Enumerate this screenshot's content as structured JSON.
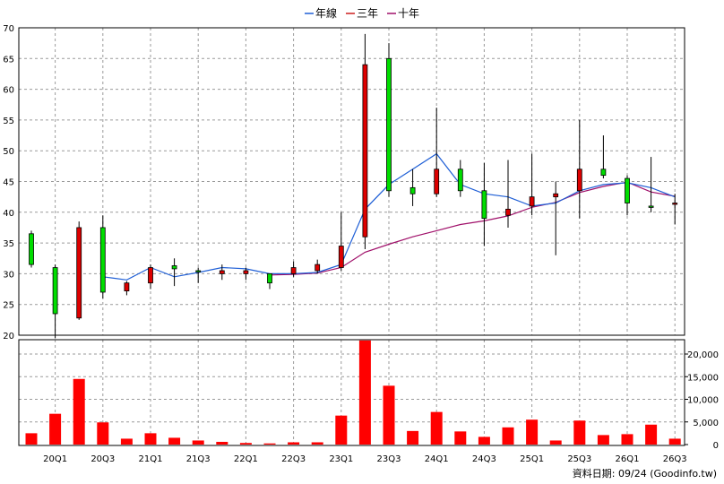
{
  "chart_data": {
    "type": "candlestick",
    "legend": [
      {
        "name": "年線",
        "color": "#1f5fd6"
      },
      {
        "name": "三年",
        "color": "#cc1e1e"
      },
      {
        "name": "十年",
        "color": "#a0106a"
      }
    ],
    "x_tick_labels": [
      "20Q1",
      "20Q3",
      "21Q1",
      "21Q3",
      "22Q1",
      "22Q3",
      "23Q1",
      "23Q3",
      "24Q1",
      "24Q3",
      "25Q1",
      "25Q3",
      "26Q1",
      "26Q3"
    ],
    "price_axis": {
      "min": 20,
      "max": 70,
      "ticks": [
        20,
        25,
        30,
        35,
        40,
        45,
        50,
        55,
        60,
        65,
        70
      ]
    },
    "volume_axis": {
      "min": 0,
      "max": 22000,
      "ticks": [
        0,
        5000,
        10000,
        15000,
        20000
      ],
      "tick_labels": [
        "0",
        "5,000",
        "10,000",
        "15,000",
        "20,000"
      ]
    },
    "colors": {
      "up": "#00dd00",
      "down": "#dd0000",
      "volume": "#ff0000",
      "year_line": "#1f5fd6",
      "ten_year_line": "#a0106a"
    },
    "candles": [
      {
        "open": 31.5,
        "high": 37.0,
        "low": 31.0,
        "close": 36.5
      },
      {
        "open": 23.5,
        "high": 31.5,
        "low": 19.5,
        "close": 31.0
      },
      {
        "open": 37.5,
        "high": 38.5,
        "low": 22.5,
        "close": 22.8
      },
      {
        "open": 27.0,
        "high": 39.5,
        "low": 26.0,
        "close": 37.5
      },
      {
        "open": 28.5,
        "high": 28.8,
        "low": 26.5,
        "close": 27.2
      },
      {
        "open": 31.0,
        "high": 31.5,
        "low": 27.5,
        "close": 28.5
      },
      {
        "open": 30.8,
        "high": 32.5,
        "low": 28.0,
        "close": 31.3
      },
      {
        "open": 30.3,
        "high": 31.0,
        "low": 28.5,
        "close": 30.5
      },
      {
        "open": 30.5,
        "high": 31.5,
        "low": 29.0,
        "close": 30.0
      },
      {
        "open": 30.5,
        "high": 31.0,
        "low": 29.0,
        "close": 30.0
      },
      {
        "open": 28.5,
        "high": 30.0,
        "low": 27.5,
        "close": 30.0
      },
      {
        "open": 31.0,
        "high": 32.0,
        "low": 29.5,
        "close": 30.0
      },
      {
        "open": 31.5,
        "high": 32.3,
        "low": 30.0,
        "close": 30.5
      },
      {
        "open": 34.5,
        "high": 40.0,
        "low": 30.5,
        "close": 31.0
      },
      {
        "open": 64.0,
        "high": 69.0,
        "low": 34.0,
        "close": 36.0
      },
      {
        "open": 43.5,
        "high": 67.5,
        "low": 42.5,
        "close": 65.0
      },
      {
        "open": 43.0,
        "high": 47.0,
        "low": 41.0,
        "close": 44.0
      },
      {
        "open": 47.0,
        "high": 57.0,
        "low": 42.5,
        "close": 43.0
      },
      {
        "open": 43.5,
        "high": 48.5,
        "low": 42.5,
        "close": 47.0
      },
      {
        "open": 39.0,
        "high": 48.0,
        "low": 34.5,
        "close": 43.5
      },
      {
        "open": 40.5,
        "high": 48.5,
        "low": 37.5,
        "close": 39.5
      },
      {
        "open": 42.5,
        "high": 49.5,
        "low": 39.5,
        "close": 41.0
      },
      {
        "open": 43.0,
        "high": 45.0,
        "low": 33.0,
        "close": 42.5
      },
      {
        "open": 47.0,
        "high": 55.0,
        "low": 39.0,
        "close": 43.5
      },
      {
        "open": 46.0,
        "high": 52.5,
        "low": 45.5,
        "close": 47.0
      },
      {
        "open": 41.5,
        "high": 46.0,
        "low": 39.5,
        "close": 45.5
      },
      {
        "open": 41.0,
        "high": 49.0,
        "low": 40.0,
        "close": 41.0
      },
      {
        "open": 41.5,
        "high": 43.0,
        "low": 38.0,
        "close": 41.3
      }
    ],
    "year_line": [
      null,
      null,
      null,
      29.5,
      29.0,
      31.0,
      29.5,
      30.2,
      31.0,
      30.8,
      30.0,
      30.0,
      30.2,
      31.5,
      40.5,
      44.5,
      47.0,
      49.5,
      44.5,
      43.0,
      42.5,
      41.0,
      41.5,
      43.5,
      44.5,
      44.8,
      44.0,
      42.5
    ],
    "ten_year_line": [
      null,
      null,
      null,
      null,
      null,
      null,
      null,
      null,
      null,
      null,
      29.8,
      29.9,
      30.1,
      31.0,
      33.5,
      34.8,
      36.0,
      37.0,
      38.0,
      38.6,
      39.4,
      40.8,
      41.6,
      43.2,
      44.2,
      44.9,
      43.3,
      42.6
    ],
    "volumes": [
      2500,
      6800,
      14500,
      4900,
      1300,
      2500,
      1500,
      900,
      600,
      350,
      250,
      500,
      500,
      6400,
      23000,
      13000,
      3000,
      7200,
      2900,
      1700,
      3800,
      5500,
      900,
      5300,
      2100,
      2300,
      4400,
      1300
    ]
  },
  "footer": {
    "source_label": "資料日期: 09/24",
    "site_label": "(Goodinfo.tw)"
  }
}
